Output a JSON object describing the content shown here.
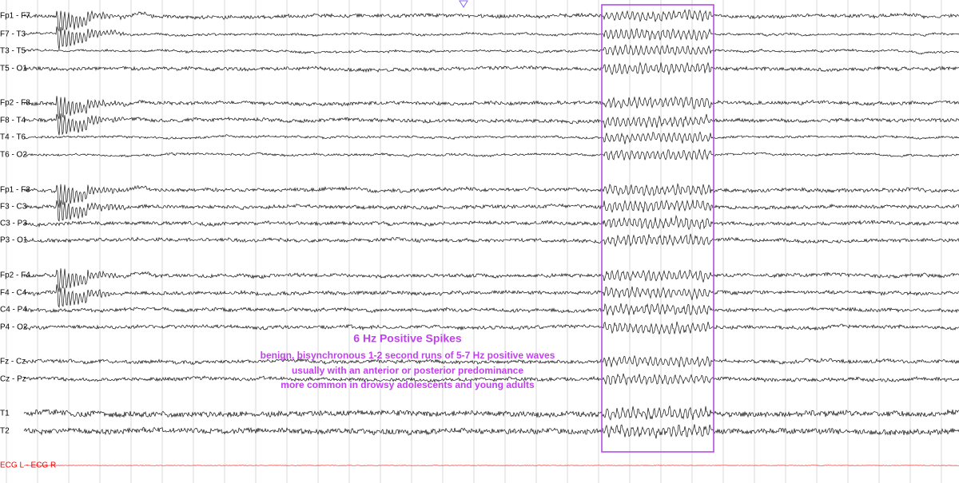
{
  "channels": [
    "Fp1 - F7",
    "F7 - T3",
    "T3 - T5",
    "T5 - O1",
    "Fp2 - F8",
    "F8 - T4",
    "T4 - T6",
    "T6 - O2",
    "Fp1 - F3",
    "F3 - C3",
    "C3 - P3",
    "P3 - O1",
    "Fp2 - F4",
    "F4 - C4",
    "C4 - P4",
    "P4 - O2",
    "Fz - Cz",
    "Cz - Pz",
    "T1",
    "T2",
    "ECG L - ECG R"
  ],
  "annotation": {
    "title": "6 Hz Positive Spikes",
    "lines": [
      "benign, bisynchronous 1-2 second runs of 5-7 Hz positive waves",
      "usually with an anterior or posterior predominance",
      "more common in drowsy adolescents and young adults"
    ]
  }
}
